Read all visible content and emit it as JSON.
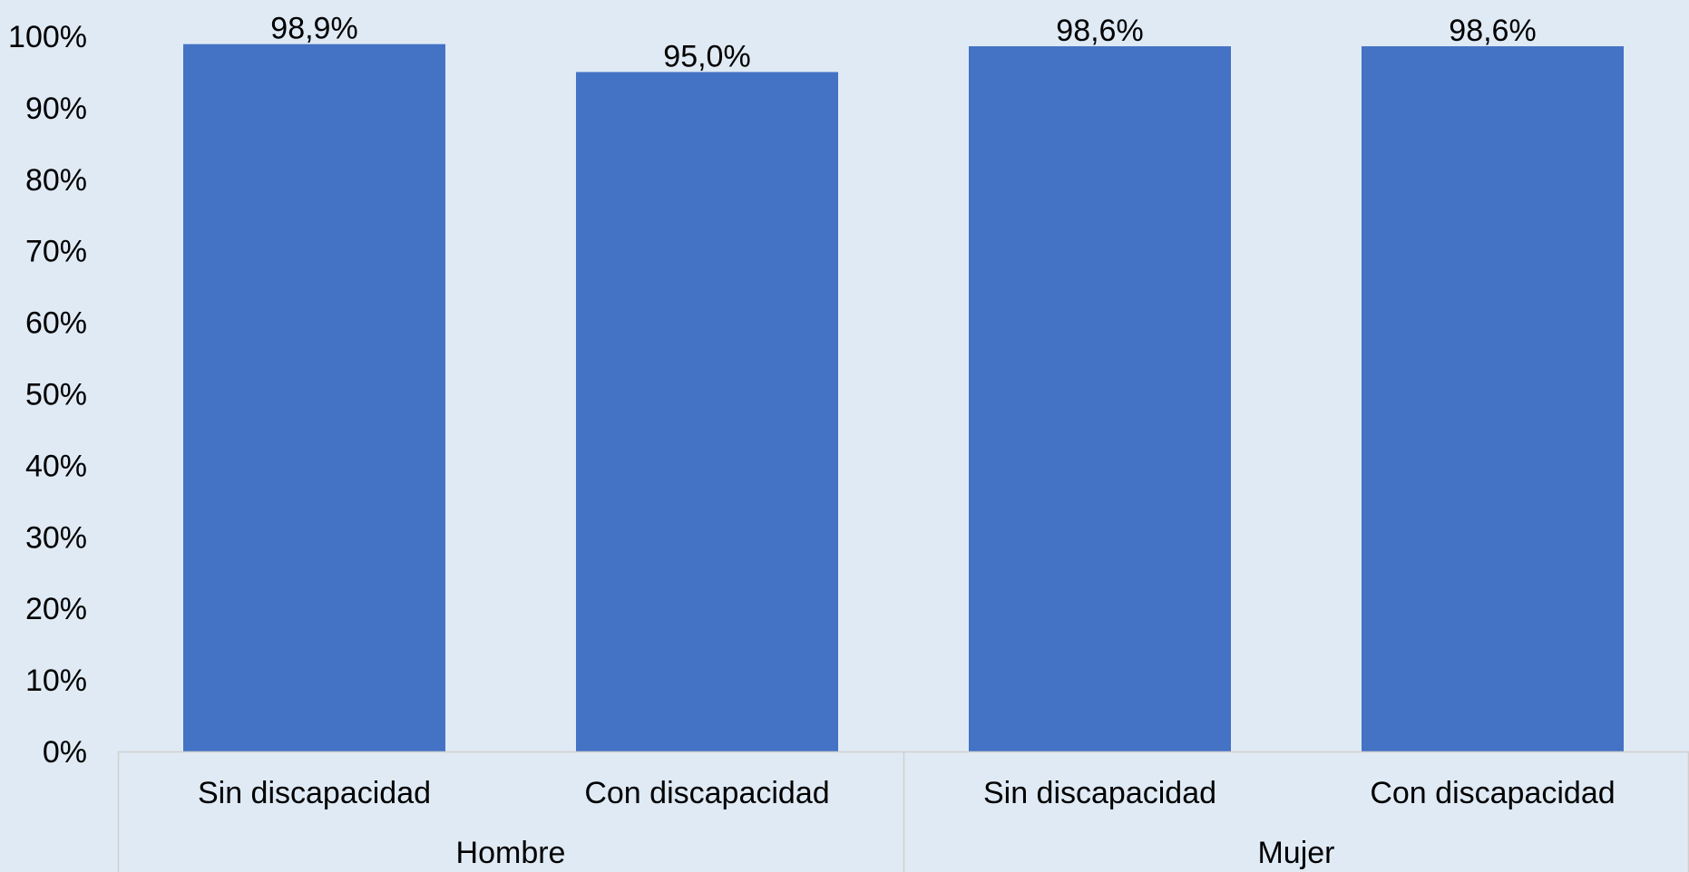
{
  "chart_data": {
    "type": "bar",
    "categories": [
      "Sin discapacidad",
      "Con discapacidad",
      "Sin discapacidad",
      "Con discapacidad"
    ],
    "groups": [
      {
        "label": "Hombre",
        "categories": [
          "Sin discapacidad",
          "Con discapacidad"
        ]
      },
      {
        "label": "Mujer",
        "categories": [
          "Sin discapacidad",
          "Con discapacidad"
        ]
      }
    ],
    "values": [
      98.9,
      95.0,
      98.6,
      98.6
    ],
    "data_labels": [
      "98,9%",
      "95,0%",
      "98,6%",
      "98,6%"
    ],
    "y_ticks": [
      "0%",
      "10%",
      "20%",
      "30%",
      "40%",
      "50%",
      "60%",
      "70%",
      "80%",
      "90%",
      "100%"
    ],
    "ylim": [
      0,
      100
    ],
    "title": "",
    "xlabel": "",
    "ylabel": "",
    "grid": false,
    "legend": "none",
    "colors": {
      "bar": "#4472c4",
      "background": "#dfeaf5",
      "axis_line": "#d0d0d0",
      "text": "#000000"
    }
  }
}
